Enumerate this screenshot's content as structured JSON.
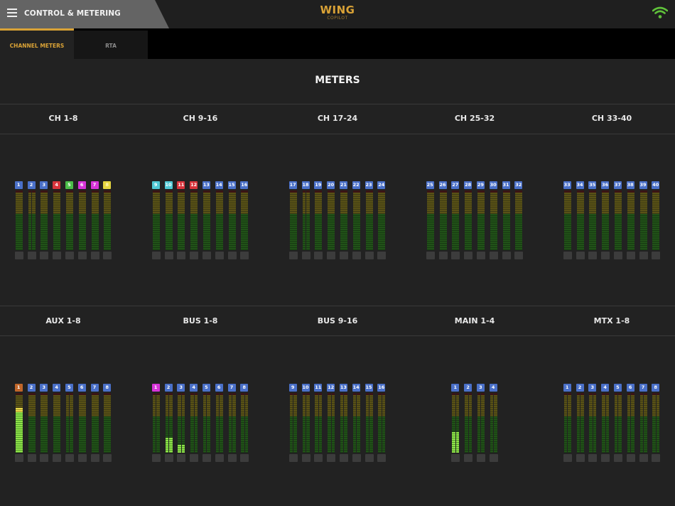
{
  "header": {
    "title": "CONTROL & METERING",
    "logo_main": "WING",
    "logo_sub": "COPILOT",
    "menu_icon": "hamburger-menu-icon",
    "status_icon": "wifi-icon",
    "wifi_color": "#5fc23a"
  },
  "tabs": [
    {
      "label": "CHANNEL METERS",
      "active": true
    },
    {
      "label": "RTA",
      "active": false
    }
  ],
  "page_title": "METERS",
  "colors": {
    "accent": "#d9a236",
    "blue": "#4a70c8",
    "red": "#d8343c",
    "green": "#4bbd48",
    "magenta": "#d733d8",
    "yellow": "#e6d640",
    "cyan": "#4fc8d4",
    "orange": "#c0662a"
  },
  "groups": [
    {
      "label": "CH 1-8",
      "row": 0,
      "col": 0,
      "strips": [
        {
          "num": "1",
          "color": "blue",
          "stereo": false,
          "level": 0
        },
        {
          "num": "2",
          "color": "blue",
          "stereo": true,
          "level": 0
        },
        {
          "num": "3",
          "color": "blue",
          "stereo": false,
          "level": 0
        },
        {
          "num": "4",
          "color": "red",
          "stereo": false,
          "level": 0
        },
        {
          "num": "5",
          "color": "green",
          "stereo": false,
          "level": 0
        },
        {
          "num": "6",
          "color": "magenta",
          "stereo": false,
          "level": 0
        },
        {
          "num": "7",
          "color": "magenta",
          "stereo": false,
          "level": 0
        },
        {
          "num": "8",
          "color": "yellow",
          "stereo": false,
          "level": 0
        }
      ]
    },
    {
      "label": "CH 9-16",
      "row": 0,
      "col": 1,
      "strips": [
        {
          "num": "9",
          "color": "cyan",
          "stereo": false,
          "level": 0
        },
        {
          "num": "10",
          "color": "cyan",
          "stereo": false,
          "level": 0
        },
        {
          "num": "11",
          "color": "red",
          "stereo": false,
          "level": 0
        },
        {
          "num": "12",
          "color": "red",
          "stereo": false,
          "level": 0
        },
        {
          "num": "13",
          "color": "blue",
          "stereo": false,
          "level": 0
        },
        {
          "num": "14",
          "color": "blue",
          "stereo": false,
          "level": 0
        },
        {
          "num": "15",
          "color": "blue",
          "stereo": false,
          "level": 0
        },
        {
          "num": "16",
          "color": "blue",
          "stereo": false,
          "level": 0
        }
      ]
    },
    {
      "label": "CH 17-24",
      "row": 0,
      "col": 2,
      "strips": [
        {
          "num": "17",
          "color": "blue",
          "stereo": false,
          "level": 0
        },
        {
          "num": "18",
          "color": "blue",
          "stereo": true,
          "level": 0
        },
        {
          "num": "19",
          "color": "blue",
          "stereo": false,
          "level": 0
        },
        {
          "num": "20",
          "color": "blue",
          "stereo": false,
          "level": 0
        },
        {
          "num": "21",
          "color": "blue",
          "stereo": false,
          "level": 0
        },
        {
          "num": "22",
          "color": "blue",
          "stereo": false,
          "level": 0
        },
        {
          "num": "23",
          "color": "blue",
          "stereo": false,
          "level": 0
        },
        {
          "num": "24",
          "color": "blue",
          "stereo": false,
          "level": 0
        }
      ]
    },
    {
      "label": "CH 25-32",
      "row": 0,
      "col": 3,
      "strips": [
        {
          "num": "25",
          "color": "blue",
          "stereo": false,
          "level": 0
        },
        {
          "num": "26",
          "color": "blue",
          "stereo": false,
          "level": 0
        },
        {
          "num": "27",
          "color": "blue",
          "stereo": false,
          "level": 0
        },
        {
          "num": "28",
          "color": "blue",
          "stereo": false,
          "level": 0
        },
        {
          "num": "29",
          "color": "blue",
          "stereo": false,
          "level": 0
        },
        {
          "num": "30",
          "color": "blue",
          "stereo": false,
          "level": 0
        },
        {
          "num": "31",
          "color": "blue",
          "stereo": false,
          "level": 0
        },
        {
          "num": "32",
          "color": "blue",
          "stereo": false,
          "level": 0
        }
      ]
    },
    {
      "label": "CH 33-40",
      "row": 0,
      "col": 4,
      "strips": [
        {
          "num": "33",
          "color": "blue",
          "stereo": false,
          "level": 0
        },
        {
          "num": "34",
          "color": "blue",
          "stereo": false,
          "level": 0
        },
        {
          "num": "35",
          "color": "blue",
          "stereo": false,
          "level": 0
        },
        {
          "num": "36",
          "color": "blue",
          "stereo": false,
          "level": 0
        },
        {
          "num": "37",
          "color": "blue",
          "stereo": false,
          "level": 0
        },
        {
          "num": "38",
          "color": "blue",
          "stereo": false,
          "level": 0
        },
        {
          "num": "39",
          "color": "blue",
          "stereo": false,
          "level": 0
        },
        {
          "num": "40",
          "color": "blue",
          "stereo": false,
          "level": 0
        }
      ]
    },
    {
      "label": "AUX 1-8",
      "row": 1,
      "col": 0,
      "strips": [
        {
          "num": "1",
          "color": "orange",
          "stereo": false,
          "level": 57,
          "peak_yellow": true
        },
        {
          "num": "2",
          "color": "blue",
          "stereo": false,
          "level": 0
        },
        {
          "num": "3",
          "color": "blue",
          "stereo": false,
          "level": 0
        },
        {
          "num": "4",
          "color": "blue",
          "stereo": false,
          "level": 0
        },
        {
          "num": "5",
          "color": "blue",
          "stereo": true,
          "level": 0
        },
        {
          "num": "6",
          "color": "blue",
          "stereo": false,
          "level": 0
        },
        {
          "num": "7",
          "color": "blue",
          "stereo": false,
          "level": 0
        },
        {
          "num": "8",
          "color": "blue",
          "stereo": false,
          "level": 0
        }
      ]
    },
    {
      "label": "BUS 1-8",
      "row": 1,
      "col": 1,
      "strips": [
        {
          "num": "1",
          "color": "magenta",
          "stereo": true,
          "level": 0
        },
        {
          "num": "2",
          "color": "blue",
          "stereo": true,
          "level": 21
        },
        {
          "num": "3",
          "color": "blue",
          "stereo": true,
          "level": 11
        },
        {
          "num": "4",
          "color": "blue",
          "stereo": true,
          "level": 0
        },
        {
          "num": "5",
          "color": "blue",
          "stereo": true,
          "level": 0
        },
        {
          "num": "6",
          "color": "blue",
          "stereo": true,
          "level": 0
        },
        {
          "num": "7",
          "color": "blue",
          "stereo": true,
          "level": 0
        },
        {
          "num": "8",
          "color": "blue",
          "stereo": true,
          "level": 0
        }
      ]
    },
    {
      "label": "BUS 9-16",
      "row": 1,
      "col": 2,
      "strips": [
        {
          "num": "9",
          "color": "blue",
          "stereo": true,
          "level": 0
        },
        {
          "num": "10",
          "color": "blue",
          "stereo": true,
          "level": 0
        },
        {
          "num": "11",
          "color": "blue",
          "stereo": true,
          "level": 0
        },
        {
          "num": "12",
          "color": "blue",
          "stereo": true,
          "level": 0
        },
        {
          "num": "13",
          "color": "blue",
          "stereo": true,
          "level": 0
        },
        {
          "num": "14",
          "color": "blue",
          "stereo": true,
          "level": 0
        },
        {
          "num": "15",
          "color": "blue",
          "stereo": true,
          "level": 0
        },
        {
          "num": "16",
          "color": "blue",
          "stereo": true,
          "level": 0
        }
      ]
    },
    {
      "label": "MAIN 1-4",
      "row": 1,
      "col": 3,
      "strips": [
        {
          "num": "1",
          "color": "blue",
          "stereo": true,
          "level": 29
        },
        {
          "num": "2",
          "color": "blue",
          "stereo": true,
          "level": 0
        },
        {
          "num": "3",
          "color": "blue",
          "stereo": true,
          "level": 0
        },
        {
          "num": "4",
          "color": "blue",
          "stereo": true,
          "level": 0
        }
      ]
    },
    {
      "label": "MTX 1-8",
      "row": 1,
      "col": 4,
      "strips": [
        {
          "num": "1",
          "color": "blue",
          "stereo": true,
          "level": 0
        },
        {
          "num": "2",
          "color": "blue",
          "stereo": true,
          "level": 0
        },
        {
          "num": "3",
          "color": "blue",
          "stereo": true,
          "level": 0
        },
        {
          "num": "4",
          "color": "blue",
          "stereo": true,
          "level": 0
        },
        {
          "num": "5",
          "color": "blue",
          "stereo": true,
          "level": 0
        },
        {
          "num": "6",
          "color": "blue",
          "stereo": true,
          "level": 0
        },
        {
          "num": "7",
          "color": "blue",
          "stereo": true,
          "level": 0
        },
        {
          "num": "8",
          "color": "blue",
          "stereo": true,
          "level": 0
        }
      ]
    }
  ]
}
